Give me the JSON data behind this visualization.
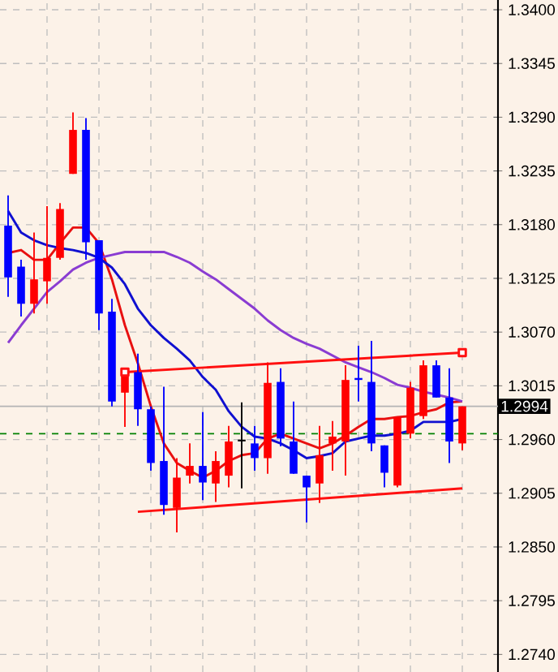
{
  "chart_data": {
    "type": "candlestick",
    "categories": [
      null,
      null,
      null,
      null,
      null,
      null,
      null,
      null,
      null,
      null,
      null,
      null,
      null,
      null,
      null,
      null,
      null,
      null,
      null,
      null,
      null,
      null,
      null,
      null,
      null,
      null,
      null,
      null,
      null,
      null,
      null,
      null,
      null,
      null,
      null,
      null
    ],
    "ohlc": [
      [
        1.3179,
        1.321,
        1.3106,
        1.3126
      ],
      [
        1.3137,
        1.3144,
        1.3086,
        1.3099
      ],
      [
        1.3099,
        1.3172,
        1.3089,
        1.3124
      ],
      [
        1.3122,
        1.3199,
        1.3099,
        1.3146
      ],
      [
        1.3146,
        1.3202,
        1.3144,
        1.3196
      ],
      [
        1.3232,
        1.3295,
        1.3232,
        1.3277
      ],
      [
        1.3277,
        1.3289,
        1.3144,
        1.3162
      ],
      [
        1.3164,
        1.3164,
        1.3072,
        1.3089
      ],
      [
        1.3091,
        1.3104,
        1.2994,
        1.2999
      ],
      [
        1.3008,
        1.3033,
        1.2973,
        1.3029
      ],
      [
        1.3029,
        1.3048,
        1.2974,
        1.2991
      ],
      [
        1.2991,
        1.2994,
        1.2928,
        1.2936
      ],
      [
        1.2938,
        1.3014,
        1.2883,
        1.2893
      ],
      [
        1.289,
        1.2941,
        1.2865,
        1.2921
      ],
      [
        1.2923,
        1.2956,
        1.2915,
        1.2933
      ],
      [
        1.2933,
        1.2988,
        1.2898,
        1.2916
      ],
      [
        1.2915,
        1.2948,
        1.2896,
        1.2938
      ],
      [
        1.2923,
        1.2974,
        1.2911,
        1.2958
      ],
      [
        1.2959,
        1.2998,
        1.291,
        1.2959
      ],
      [
        1.2956,
        1.2974,
        1.2928,
        1.2941
      ],
      [
        1.2941,
        1.3039,
        1.2925,
        1.3018
      ],
      [
        1.3019,
        1.3033,
        1.2953,
        1.2961
      ],
      [
        1.2958,
        1.2999,
        1.2925,
        1.2925
      ],
      [
        1.2923,
        1.2923,
        1.2875,
        1.2911
      ],
      [
        1.2915,
        1.2974,
        1.2895,
        1.2944
      ],
      [
        1.2956,
        1.2979,
        1.2928,
        1.2963
      ],
      [
        1.2958,
        1.3036,
        1.2923,
        1.3021
      ],
      [
        1.3023,
        1.3056,
        1.2999,
        1.3021
      ],
      [
        1.3019,
        1.3061,
        1.2948,
        1.2956
      ],
      [
        1.2954,
        1.2954,
        1.2911,
        1.2926
      ],
      [
        1.2913,
        1.2983,
        1.2911,
        1.2983
      ],
      [
        1.2966,
        1.3019,
        1.2961,
        1.3013
      ],
      [
        1.2984,
        1.3041,
        1.2981,
        1.3036
      ],
      [
        1.3036,
        1.3041,
        1.3003,
        1.3003
      ],
      [
        1.3003,
        1.3033,
        1.2936,
        1.2958
      ],
      [
        1.2956,
        1.2994,
        1.2949,
        1.2994
      ]
    ],
    "colors": [
      "#0000ff",
      "#0000ff",
      "#ff0000",
      "#ff0000",
      "#ff0000",
      "#ff0000",
      "#0000ff",
      "#0000ff",
      "#0000ff",
      "#ff0000",
      "#0000ff",
      "#0000ff",
      "#0000ff",
      "#ff0000",
      "#ff0000",
      "#0000ff",
      "#ff0000",
      "#ff0000",
      "#000000",
      "#0000ff",
      "#ff0000",
      "#0000ff",
      "#0000ff",
      "#0000ff",
      "#ff0000",
      "#ff0000",
      "#ff0000",
      "#0000ff",
      "#0000ff",
      "#0000ff",
      "#ff0000",
      "#ff0000",
      "#ff0000",
      "#0000ff",
      "#0000ff",
      "#ff0000"
    ],
    "series": [
      {
        "type": "line",
        "color": "#e81010",
        "values": [
          1.3151,
          1.3154,
          1.3144,
          1.3144,
          1.3161,
          1.3177,
          1.3177,
          1.3161,
          1.3124,
          1.3077,
          1.3038,
          1.2994,
          1.2956,
          1.2936,
          1.2928,
          1.2921,
          1.2928,
          1.2938,
          1.2944,
          1.2946,
          1.2961,
          1.2966,
          1.2961,
          1.2956,
          1.2951,
          1.2956,
          1.2964,
          1.2973,
          1.2981,
          1.2981,
          1.2983,
          1.2984,
          1.2988,
          1.2991,
          1.2998,
          1.2999
        ]
      },
      {
        "type": "line",
        "color": "#1010d0",
        "values": [
          1.3194,
          1.3172,
          1.3164,
          1.3159,
          1.3156,
          1.3154,
          1.3151,
          1.3146,
          1.3136,
          1.3119,
          1.3094,
          1.3077,
          1.3064,
          1.3053,
          1.3041,
          1.3024,
          1.3011,
          1.2989,
          1.2973,
          1.2963,
          1.2961,
          1.2956,
          1.2949,
          1.2941,
          1.2943,
          1.2946,
          1.2958,
          1.2961,
          1.2964,
          1.2964,
          1.2966,
          1.2969,
          1.2978,
          1.2978,
          1.2978,
          1.2981
        ]
      },
      {
        "type": "line",
        "color": "#8a3cd2",
        "values": [
          1.3059,
          1.3077,
          1.3094,
          1.3111,
          1.3122,
          1.3134,
          1.3141,
          1.3146,
          1.3149,
          1.3152,
          1.3152,
          1.3152,
          1.3152,
          1.3147,
          1.3141,
          1.3132,
          1.3124,
          1.3114,
          1.3104,
          1.3094,
          1.3082,
          1.3072,
          1.3064,
          1.3058,
          1.3053,
          1.3046,
          1.3039,
          1.3034,
          1.3029,
          1.3023,
          1.3016,
          1.3013,
          1.3009,
          1.3006,
          1.3003,
          1.2999
        ]
      },
      {
        "type": "line",
        "color": "#ff1010",
        "marker": "square",
        "values": [
          null,
          null,
          null,
          null,
          null,
          null,
          null,
          null,
          null,
          1.3029,
          null,
          null,
          null,
          null,
          null,
          null,
          null,
          null,
          null,
          null,
          null,
          null,
          null,
          null,
          null,
          null,
          null,
          null,
          null,
          null,
          null,
          null,
          null,
          null,
          null,
          1.3049
        ]
      },
      {
        "type": "line",
        "color": "#ff1010",
        "values": [
          null,
          null,
          null,
          null,
          null,
          null,
          null,
          null,
          null,
          null,
          1.2886,
          null,
          null,
          null,
          null,
          null,
          null,
          null,
          null,
          null,
          null,
          null,
          null,
          null,
          null,
          null,
          null,
          null,
          null,
          null,
          null,
          null,
          null,
          null,
          null,
          1.291
        ]
      }
    ],
    "ylim": [
      1.2722,
      1.341
    ],
    "yticks": [
      {
        "value": 1.34,
        "label": "1.3400"
      },
      1.3345,
      {
        "value": 1.329,
        "label": "1.3290"
      },
      1.3235,
      {
        "value": 1.318,
        "label": "1.3180"
      },
      1.3125,
      {
        "value": 1.307,
        "label": "1.3070"
      },
      1.3015,
      {
        "value": 1.296,
        "label": "1.2960"
      },
      1.2905,
      {
        "value": 1.285,
        "label": "1.2850"
      },
      1.2795,
      {
        "value": 1.274,
        "label": "1.2740"
      }
    ],
    "ref_lines": [
      {
        "axis": "y",
        "value": 1.2994,
        "label": "1.2994",
        "color": "#b4b4b4"
      },
      {
        "axis": "y",
        "value": 1.2966,
        "color": "#008000",
        "line_style": "dashed"
      }
    ],
    "grid": true,
    "tick_labels": "y"
  }
}
